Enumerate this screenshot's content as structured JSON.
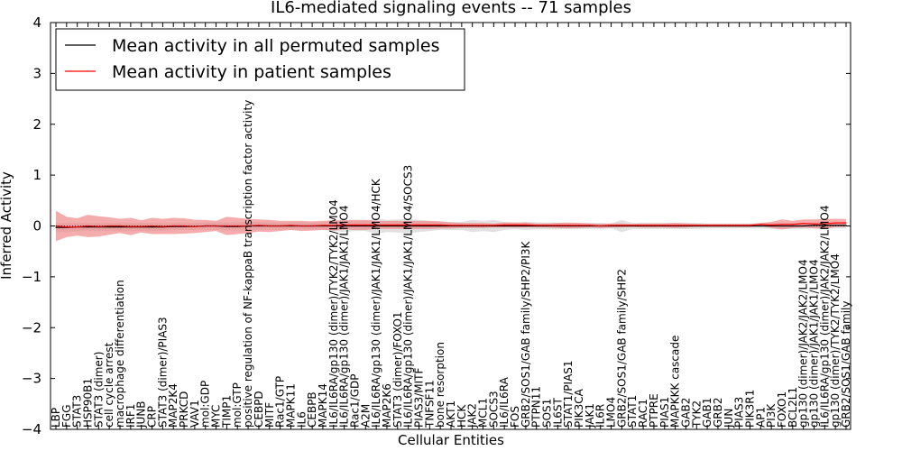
{
  "chart_data": {
    "type": "line",
    "title": "IL6-mediated signaling events -- 71 samples",
    "xlabel": "Cellular Entities",
    "ylabel": "Inferred Activity",
    "ylim": [
      -4,
      4
    ],
    "yticks": [
      -4,
      -3,
      -2,
      -1,
      0,
      1,
      2,
      3,
      4
    ],
    "grid": false,
    "legend_position": "top-left",
    "categories": [
      "LBP",
      "FGG",
      "STAT3",
      "HSP90B1",
      "STAT3 (dimer)",
      "cell cycle arrest",
      "macrophage differentiation",
      "IRF1",
      "JUNB",
      "CRP",
      "STAT3 (dimer)/PIAS3",
      "MAP2K4",
      "PRKCD",
      "VAV1",
      "mol:GDP",
      "MYC",
      "TIMP1",
      "mol:GTP",
      "positive regulation of NF-kappaB transcription factor activity",
      "CEBPD",
      "MITF",
      "Rac1/GTP",
      "MAPK11",
      "IL6",
      "CEBPB",
      "MAPK14",
      "IL6/IL6RA/gp130 (dimer)/TYK2/TYK2/LMO4",
      "IL6/IL6RA/gp130 (dimer)/JAK1/JAK1/LMO4",
      "Rac1/GDP",
      "A2M",
      "IL6/IL6RA/gp130 (dimer)/JAK1/JAK1/LMO4/HCK",
      "MAP2K6",
      "STAT3 (dimer)/FOXO1",
      "IL6/IL6RA/gp130 (dimer)/JAK1/JAK1/LMO4/SOCS3",
      "PIAS3/MITF",
      "TNFSF11",
      "bone resorption",
      "AKT1",
      "HCK",
      "JAK2",
      "MCL1",
      "SOCS3",
      "IL6/IL6RA",
      "FOS",
      "GRB2/SOS1/GAB family/SHP2/PI3K",
      "PTPN11",
      "SOS1",
      "IL6ST",
      "STAT1/PIAS1",
      "PIK3CA",
      "JAK1",
      "IL6R",
      "LMO4",
      "GRB2/SOS1/GAB family/SHP2",
      "STAT1",
      "RAC1",
      "PTPRE",
      "PIAS1",
      "MAPKKK cascade",
      "GAB2",
      "TYK2",
      "GAB1",
      "GRB2",
      "JUN",
      "PIAS3",
      "PIK3R1",
      "AP1",
      "PI3K",
      "FOXO1",
      "BCL2L1",
      "gp130 (dimer)/JAK2/JAK2/LMO4",
      "gp130 (dimer)/JAK1/JAK1/LMO4",
      "IL6/IL6RA/gp130 (dimer)/JAK2/JAK2/LMO4",
      "gp130 (dimer)/TYK2/TYK2/LMO4",
      "GRB2/SOS1/GAB family"
    ],
    "series": [
      {
        "name": "Mean activity in all permuted samples",
        "color": "#000000",
        "values": [
          -0.03,
          -0.03,
          -0.02,
          -0.02,
          -0.02,
          -0.02,
          -0.02,
          -0.02,
          -0.02,
          -0.02,
          -0.02,
          -0.01,
          -0.01,
          -0.01,
          0.0,
          0.0,
          -0.01,
          -0.01,
          0.0,
          0.0,
          0.0,
          0.0,
          0.0,
          0.0,
          0.0,
          0.0,
          0.0,
          0.0,
          0.0,
          0.0,
          0.0,
          0.0,
          0.0,
          0.0,
          0.0,
          0.0,
          0.0,
          0.0,
          0.0,
          0.0,
          0.0,
          0.0,
          0.0,
          0.0,
          0.0,
          0.0,
          0.0,
          0.0,
          0.0,
          0.0,
          0.0,
          0.0,
          0.0,
          0.0,
          0.0,
          0.0,
          0.0,
          0.0,
          0.0,
          0.0,
          0.0,
          0.0,
          0.0,
          0.0,
          0.0,
          0.0,
          0.0,
          0.0,
          0.0,
          0.0,
          0.0,
          0.01,
          0.01,
          0.01,
          0.01
        ],
        "band": [
          0.09,
          0.09,
          0.08,
          0.08,
          0.08,
          0.08,
          0.08,
          0.08,
          0.08,
          0.08,
          0.08,
          0.07,
          0.07,
          0.07,
          0.07,
          0.07,
          0.08,
          0.08,
          0.08,
          0.08,
          0.07,
          0.07,
          0.07,
          0.07,
          0.07,
          0.07,
          0.1,
          0.12,
          0.1,
          0.1,
          0.15,
          0.12,
          0.13,
          0.14,
          0.12,
          0.1,
          0.08,
          0.08,
          0.08,
          0.12,
          0.1,
          0.12,
          0.08,
          0.06,
          0.08,
          0.07,
          0.07,
          0.07,
          0.06,
          0.06,
          0.06,
          0.06,
          0.05,
          0.12,
          0.06,
          0.06,
          0.06,
          0.06,
          0.06,
          0.06,
          0.06,
          0.05,
          0.05,
          0.05,
          0.05,
          0.05,
          0.05,
          0.06,
          0.06,
          0.06,
          0.06,
          0.06,
          0.06,
          0.06,
          0.06
        ]
      },
      {
        "name": "Mean activity in patient samples",
        "color": "#ff0000",
        "values": [
          0.0,
          -0.02,
          -0.02,
          0.0,
          -0.01,
          0.0,
          0.0,
          -0.01,
          -0.01,
          0.0,
          -0.01,
          0.0,
          0.0,
          -0.01,
          0.0,
          0.0,
          0.0,
          0.0,
          0.0,
          0.01,
          0.0,
          0.0,
          0.01,
          0.0,
          0.0,
          0.01,
          0.01,
          0.02,
          0.02,
          0.02,
          0.02,
          0.02,
          0.02,
          0.02,
          0.02,
          0.02,
          0.02,
          0.01,
          0.01,
          0.01,
          0.01,
          0.01,
          0.02,
          0.02,
          0.02,
          0.01,
          0.01,
          0.01,
          0.01,
          0.01,
          0.01,
          0.0,
          0.01,
          0.01,
          0.01,
          0.01,
          0.01,
          0.01,
          0.01,
          0.01,
          0.01,
          0.01,
          0.01,
          0.01,
          0.01,
          0.01,
          0.03,
          0.02,
          0.03,
          0.03,
          0.05,
          0.04,
          0.04,
          0.06,
          0.06
        ],
        "band": [
          0.3,
          0.2,
          0.17,
          0.22,
          0.2,
          0.17,
          0.14,
          0.17,
          0.12,
          0.16,
          0.15,
          0.16,
          0.15,
          0.13,
          0.12,
          0.1,
          0.18,
          0.16,
          0.14,
          0.12,
          0.12,
          0.1,
          0.09,
          0.1,
          0.09,
          0.09,
          0.1,
          0.09,
          0.1,
          0.1,
          0.08,
          0.08,
          0.08,
          0.08,
          0.08,
          0.08,
          0.07,
          0.06,
          0.05,
          0.05,
          0.05,
          0.04,
          0.05,
          0.05,
          0.05,
          0.04,
          0.04,
          0.05,
          0.06,
          0.05,
          0.04,
          0.04,
          0.04,
          0.04,
          0.03,
          0.04,
          0.04,
          0.04,
          0.05,
          0.04,
          0.03,
          0.03,
          0.03,
          0.03,
          0.03,
          0.03,
          0.03,
          0.06,
          0.1,
          0.07,
          0.08,
          0.09,
          0.1,
          0.08,
          0.08
        ]
      }
    ]
  }
}
